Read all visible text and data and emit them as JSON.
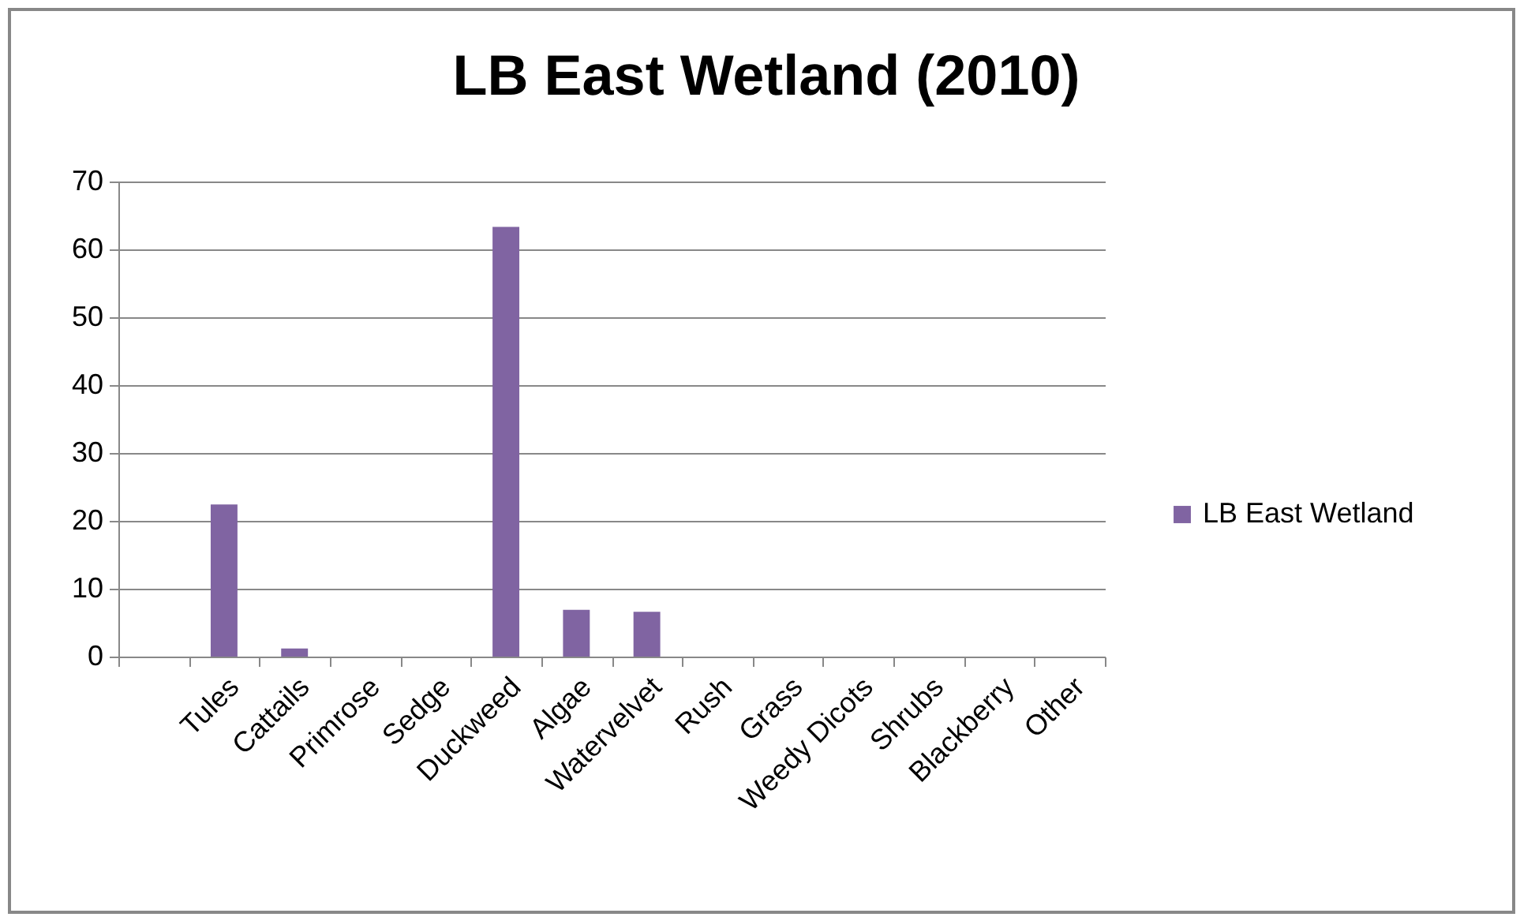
{
  "chart_data": {
    "type": "bar",
    "title": "LB East Wetland (2010)",
    "categories": [
      null,
      "Tules",
      "Cattails",
      "Primrose",
      "Sedge",
      "Duckweed",
      "Algae",
      "Watervelvet",
      "Rush",
      "Grass",
      "Weedy Dicots",
      "Shrubs",
      "Blackberry",
      "Other"
    ],
    "series": [
      {
        "name": "LB East Wetland",
        "color": "#8064a2",
        "values": [
          null,
          22.4,
          1.2,
          0,
          0,
          63.3,
          6.9,
          6.6,
          0,
          0,
          0,
          0,
          0,
          0
        ]
      }
    ],
    "ylim": [
      0,
      70
    ],
    "yticks": [
      0,
      10,
      20,
      30,
      40,
      50,
      60,
      70
    ],
    "grid": "y",
    "legend": "right"
  }
}
